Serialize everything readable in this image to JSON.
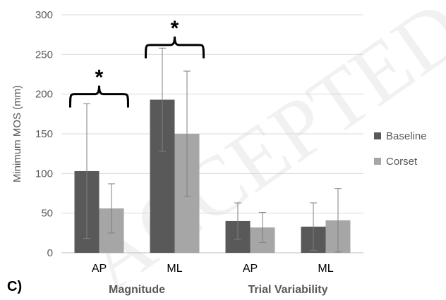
{
  "chart_data": {
    "type": "bar",
    "panel_label": "C)",
    "ylabel": "Minimum MOS (mm)",
    "ylim": [
      0,
      300
    ],
    "yticks": [
      "0",
      "50",
      "100",
      "150",
      "200",
      "250",
      "300"
    ],
    "grid": true,
    "legend_position": "right",
    "categories": [
      "AP",
      "ML",
      "AP",
      "ML"
    ],
    "groups": [
      {
        "label": "Magnitude",
        "categories": [
          "AP",
          "ML"
        ]
      },
      {
        "label": "Trial Variability",
        "categories": [
          "AP",
          "ML"
        ]
      }
    ],
    "series": [
      {
        "name": "Baseline",
        "color": "#595959",
        "values": [
          103,
          193,
          40,
          33
        ],
        "errors": [
          85,
          65,
          23,
          30
        ]
      },
      {
        "name": "Corset",
        "color": "#a6a6a6",
        "values": [
          56,
          150,
          32,
          41
        ],
        "errors": [
          31,
          79,
          19,
          40
        ]
      }
    ],
    "annotations": [
      {
        "text": "*",
        "category_index": 0,
        "bracket_y": 200
      },
      {
        "text": "*",
        "category_index": 1,
        "bracket_y": 262
      }
    ],
    "watermark": "ACCEPTED"
  }
}
